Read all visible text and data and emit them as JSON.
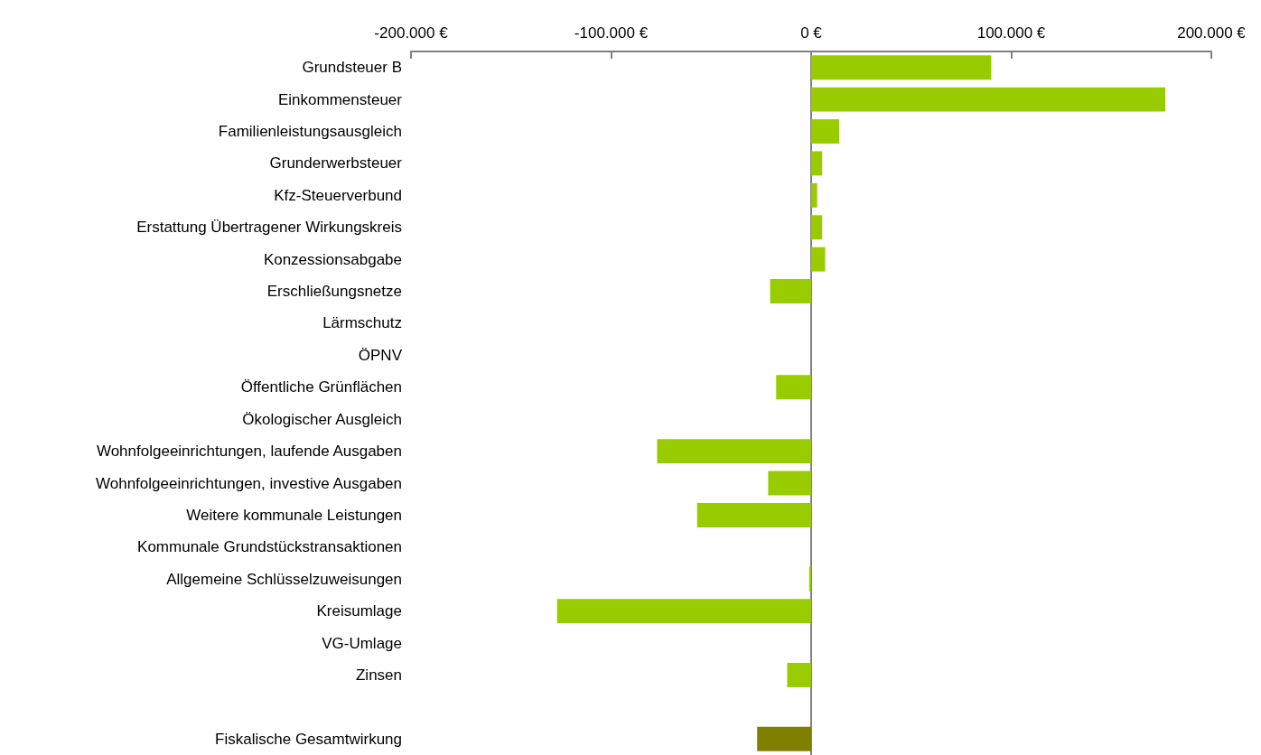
{
  "chart_data": {
    "type": "bar",
    "orientation": "horizontal",
    "categories": [
      "Grundsteuer B",
      "Einkommensteuer",
      "Familienleistungsausgleich",
      "Grunderwerbsteuer",
      "Kfz-Steuerverbund",
      "Erstattung Übertragener Wirkungskreis",
      "Konzessionsabgabe",
      "Erschließungsnetze",
      "Lärmschutz",
      "ÖPNV",
      "Öffentliche Grünflächen",
      "Ökologischer Ausgleich",
      "Wohnfolgeeinrichtungen, laufende Ausgaben",
      "Wohnfolgeeinrichtungen, investive Ausgaben",
      "Weitere kommunale Leistungen",
      "Kommunale Grundstückstransaktionen",
      "Allgemeine Schlüsselzuweisungen",
      "Kreisumlage",
      "VG-Umlage",
      "Zinsen",
      null,
      "Fiskalische Gesamtwirkung"
    ],
    "values": [
      90000,
      177000,
      14000,
      5500,
      3000,
      5500,
      7000,
      -20500,
      0,
      0,
      -17500,
      0,
      -77000,
      -21500,
      -57000,
      0,
      -1000,
      -127000,
      0,
      -12000,
      null,
      -27000
    ],
    "colors": [
      "#99cc00",
      "#99cc00",
      "#99cc00",
      "#99cc00",
      "#99cc00",
      "#99cc00",
      "#99cc00",
      "#99cc00",
      "#99cc00",
      "#99cc00",
      "#99cc00",
      "#99cc00",
      "#99cc00",
      "#99cc00",
      "#99cc00",
      "#99cc00",
      "#99cc00",
      "#99cc00",
      "#99cc00",
      "#99cc00",
      "#99cc00",
      "#808000"
    ],
    "xlim": [
      -200000,
      200000
    ],
    "xticks": [
      {
        "value": -200000,
        "label": "-200.000 €"
      },
      {
        "value": -100000,
        "label": "-100.000 €"
      },
      {
        "value": 0,
        "label": "0 €"
      },
      {
        "value": 100000,
        "label": "100.000 €"
      },
      {
        "value": 200000,
        "label": "200.000 €"
      }
    ]
  }
}
